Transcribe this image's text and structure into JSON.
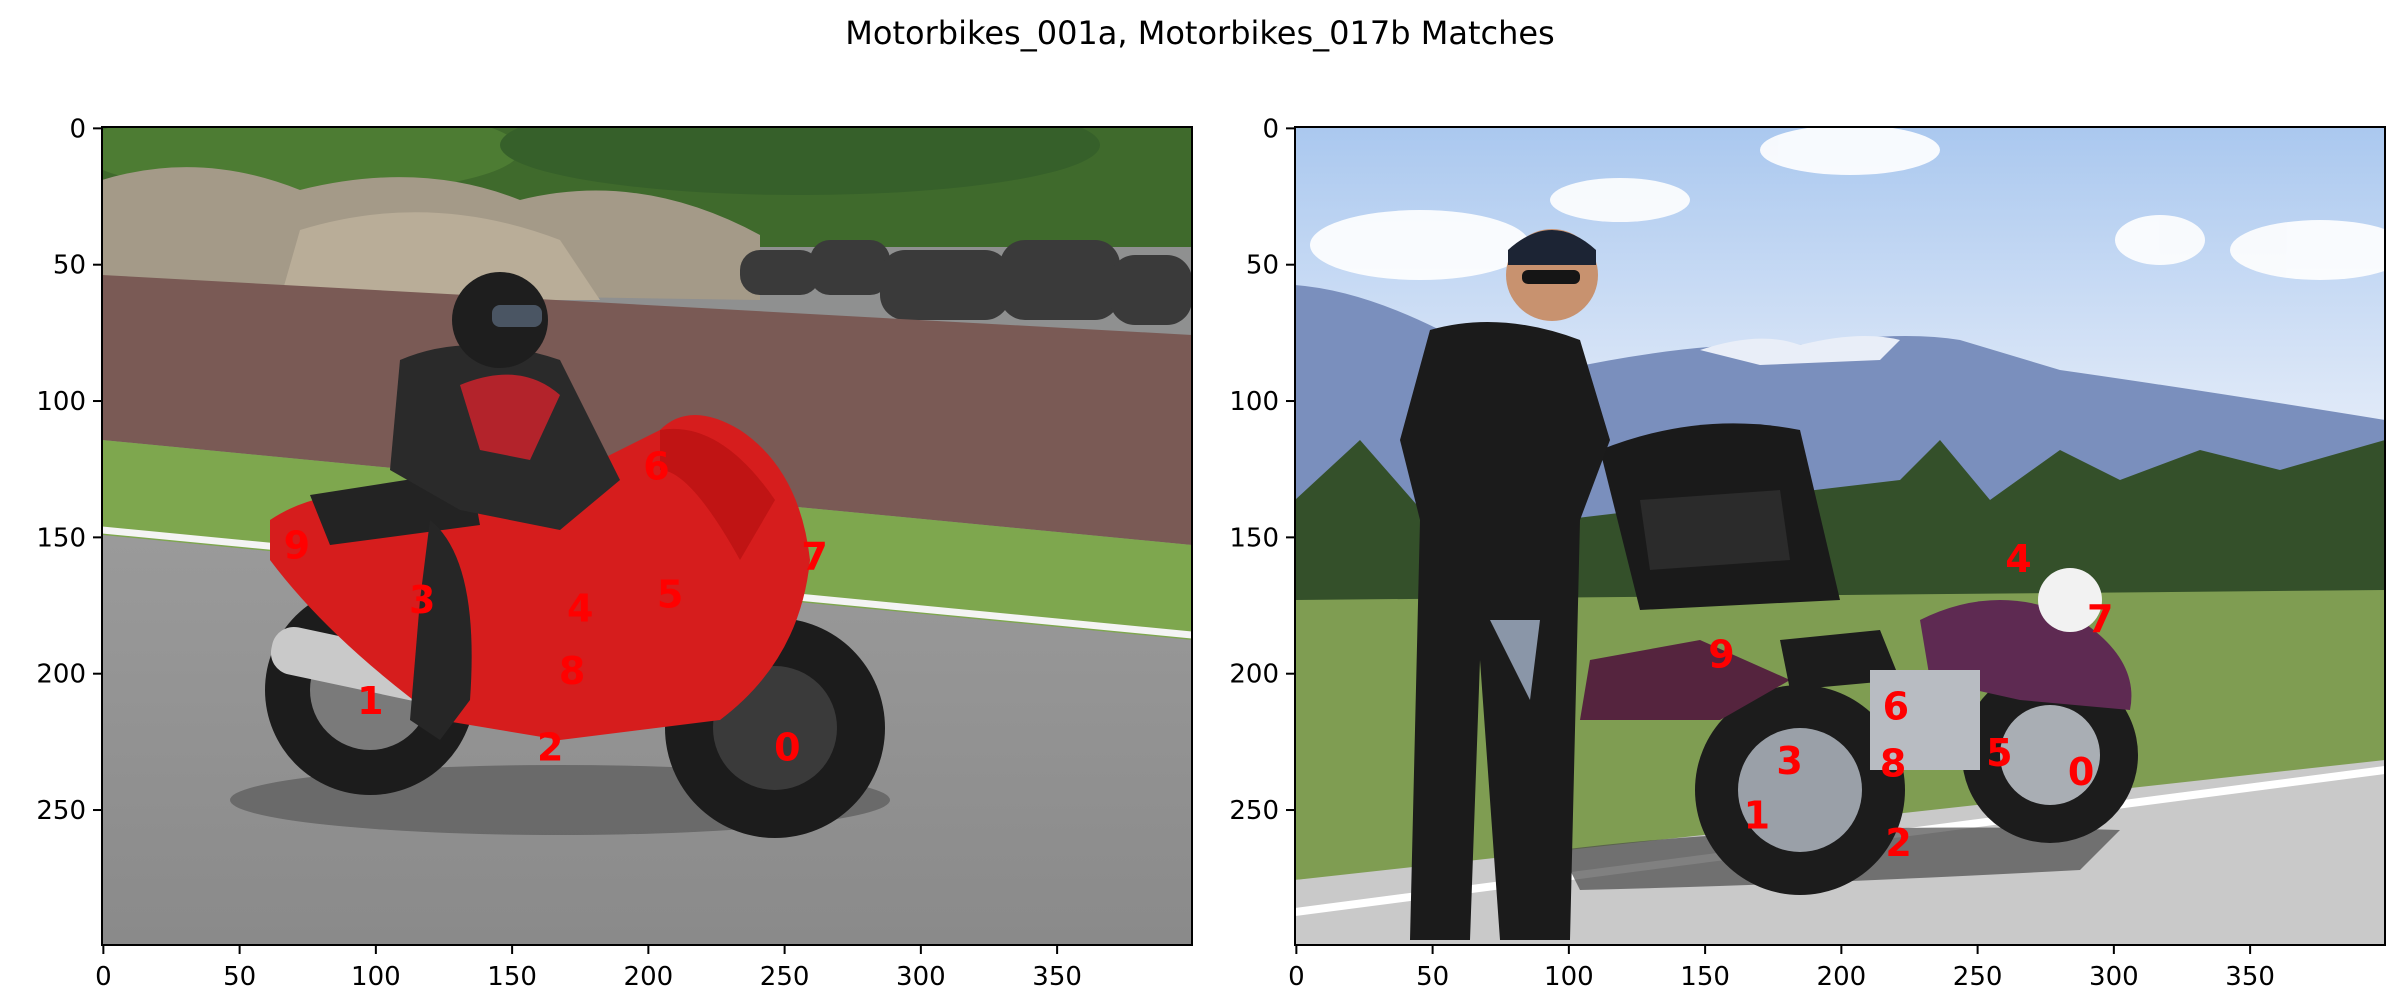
{
  "title": "Motorbikes_001a, Motorbikes_017b Matches",
  "chart_data": [
    {
      "type": "scatter",
      "image": "Motorbikes_001a",
      "xlim": [
        0,
        400
      ],
      "ylim": [
        300,
        0
      ],
      "xticks": [
        0,
        50,
        100,
        150,
        200,
        250,
        300,
        350
      ],
      "yticks": [
        0,
        50,
        100,
        150,
        200,
        250
      ],
      "points": [
        {
          "label": "0",
          "x": 251,
          "y": 227
        },
        {
          "label": "1",
          "x": 98,
          "y": 210
        },
        {
          "label": "2",
          "x": 164,
          "y": 227
        },
        {
          "label": "3",
          "x": 117,
          "y": 173
        },
        {
          "label": "4",
          "x": 175,
          "y": 176
        },
        {
          "label": "5",
          "x": 208,
          "y": 171
        },
        {
          "label": "6",
          "x": 203,
          "y": 124
        },
        {
          "label": "7",
          "x": 261,
          "y": 157
        },
        {
          "label": "8",
          "x": 172,
          "y": 199
        },
        {
          "label": "9",
          "x": 71,
          "y": 153
        }
      ]
    },
    {
      "type": "scatter",
      "image": "Motorbikes_017b",
      "xlim": [
        0,
        400
      ],
      "ylim": [
        300,
        0
      ],
      "xticks": [
        0,
        50,
        100,
        150,
        200,
        250,
        300,
        350
      ],
      "yticks": [
        0,
        50,
        100,
        150,
        200,
        250
      ],
      "points": [
        {
          "label": "0",
          "x": 288,
          "y": 236
        },
        {
          "label": "1",
          "x": 169,
          "y": 252
        },
        {
          "label": "2",
          "x": 221,
          "y": 262
        },
        {
          "label": "3",
          "x": 181,
          "y": 232
        },
        {
          "label": "4",
          "x": 265,
          "y": 158
        },
        {
          "label": "5",
          "x": 258,
          "y": 229
        },
        {
          "label": "6",
          "x": 220,
          "y": 212
        },
        {
          "label": "7",
          "x": 295,
          "y": 180
        },
        {
          "label": "8",
          "x": 219,
          "y": 233
        },
        {
          "label": "9",
          "x": 156,
          "y": 193
        }
      ]
    }
  ],
  "colors": {
    "keypoint": "#ff0000"
  }
}
